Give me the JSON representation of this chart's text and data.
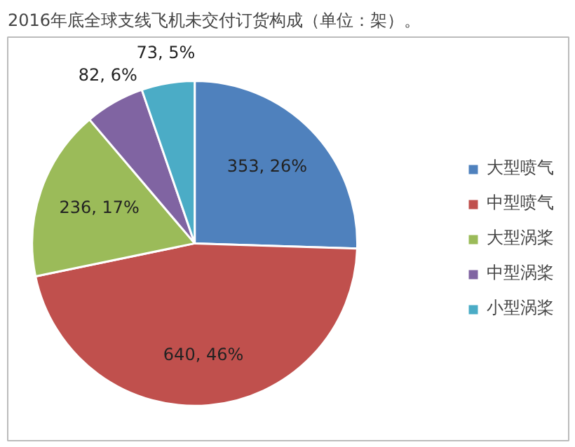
{
  "chart_data": {
    "type": "pie",
    "title": "2016年底全球支线飞机未交付订货构成（单位：架）。",
    "categories": [
      "大型喷气",
      "中型喷气",
      "大型涡桨",
      "中型涡桨",
      "小型涡桨"
    ],
    "values": [
      353,
      640,
      236,
      82,
      73
    ],
    "value_labels": [
      "353, 26%",
      "640, 46%",
      "236, 17%",
      "82, 6%",
      "73, 5%"
    ],
    "colors": [
      "#4f81bd",
      "#c0504d",
      "#9bbb59",
      "#8064a2",
      "#4bacc6"
    ],
    "legend": "right"
  }
}
